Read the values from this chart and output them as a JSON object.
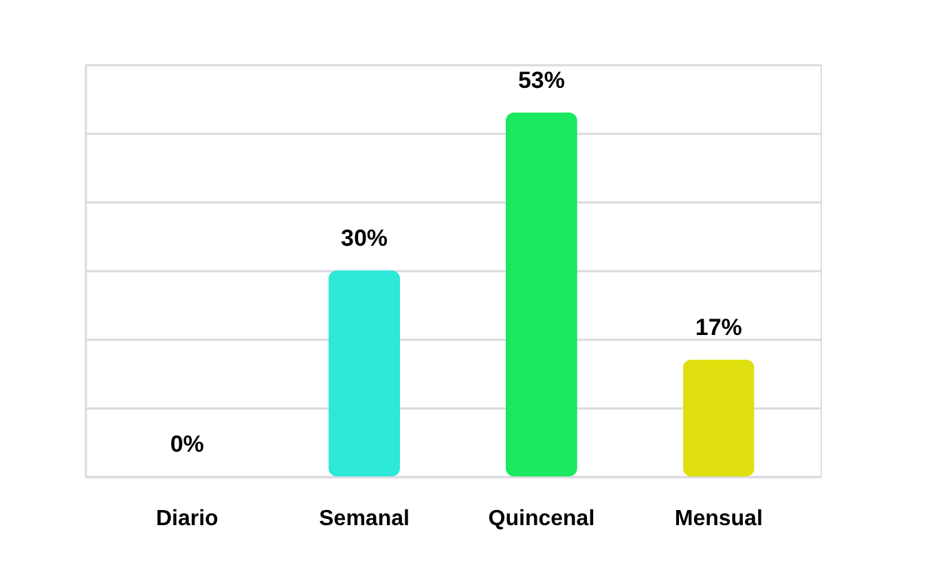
{
  "chart_data": {
    "type": "bar",
    "categories": [
      "Diario",
      "Semanal",
      "Quincenal",
      "Mensual"
    ],
    "values": [
      0,
      30,
      53,
      17
    ],
    "colors": [
      "#0000c0",
      "#2ee8d8",
      "#1ae860",
      "#e0e010"
    ],
    "value_labels": [
      "0%",
      "30%",
      "53%",
      "17%"
    ],
    "ylim": [
      0,
      60
    ],
    "yticks": [
      {
        "value": 0,
        "label": null
      },
      {
        "value": 10,
        "label": null
      },
      {
        "value": 20,
        "label": null
      },
      {
        "value": 30,
        "label": null
      },
      {
        "value": 40,
        "label": null
      },
      {
        "value": 50,
        "label": null
      },
      {
        "value": 60,
        "label": null
      }
    ],
    "tick_labels": "x",
    "grid": "y"
  }
}
